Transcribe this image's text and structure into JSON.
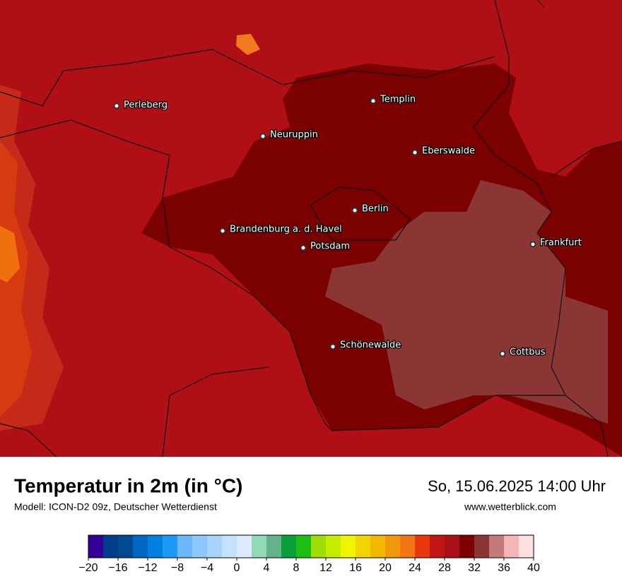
{
  "header": {
    "title": "Temperatur in 2m (in °C)",
    "subtitle": "Modell: ICON-D2 09z, Deutscher Wetterdienst",
    "date": "So, 15.06.2025 14:00 Uhr",
    "website": "www.wetterblick.com"
  },
  "cities": [
    "Perleberg",
    "Templin",
    "Neuruppin",
    "Eberswalde",
    "Berlin",
    "Brandenburg a. d. Havel",
    "Potsdam",
    "Frankfurt",
    "Schönewalde",
    "Cottbus"
  ],
  "colorbar": {
    "range": [
      -20,
      40
    ],
    "colors": [
      "#330099",
      "#003c8c",
      "#004a8f",
      "#0066c4",
      "#0080e0",
      "#1c98f5",
      "#6db8fa",
      "#8cc8fb",
      "#a6d4fc",
      "#c5e2fd",
      "#dcecfe",
      "#93d9b5",
      "#62b38a",
      "#0b9e3a",
      "#1ebd14",
      "#a0de0a",
      "#c8ec00",
      "#f0f500",
      "#f2d500",
      "#f2b800",
      "#f2960c",
      "#f27613",
      "#e8380e",
      "#c11515",
      "#a81016",
      "#7b0000",
      "#8b3535",
      "#c47a7a",
      "#f6b5b5",
      "#ffe0e0"
    ],
    "ticks": [
      {
        "value": -20,
        "label": "−20"
      },
      {
        "value": -16,
        "label": "−16"
      },
      {
        "value": -12,
        "label": "−12"
      },
      {
        "value": -8,
        "label": "−8"
      },
      {
        "value": -4,
        "label": "−4"
      },
      0,
      4,
      8,
      12,
      16,
      20,
      24,
      28,
      32,
      36,
      40
    ]
  }
}
